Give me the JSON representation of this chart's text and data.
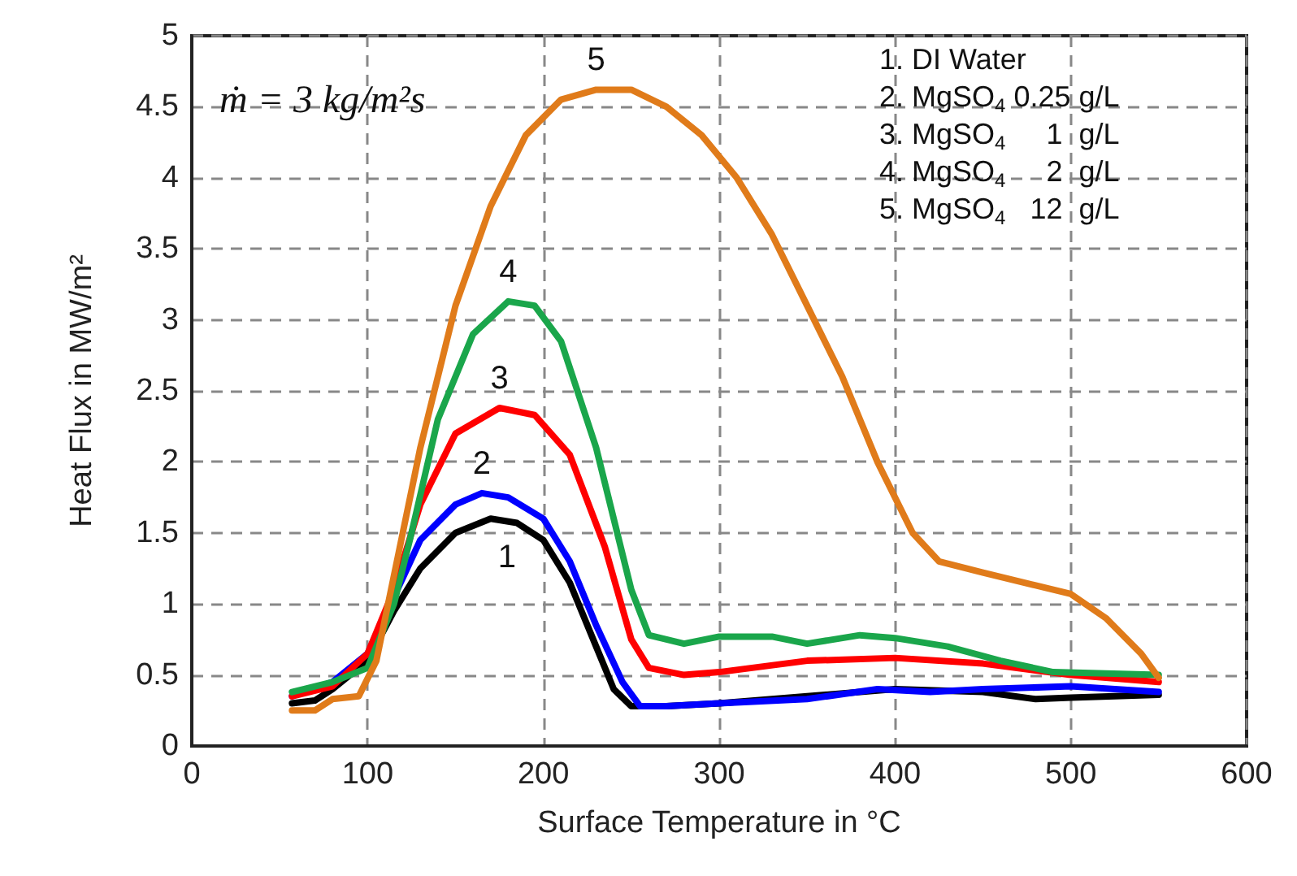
{
  "chart_data": {
    "type": "line",
    "xlabel": "Surface Temperature in °C",
    "ylabel": "Heat Flux in MW/m²",
    "xlim": [
      0,
      600
    ],
    "xticks": [
      0,
      100,
      200,
      300,
      400,
      500,
      600
    ],
    "ylim": [
      0,
      5
    ],
    "yticks": [
      0,
      0.5,
      1,
      1.5,
      2,
      2.5,
      3,
      3.5,
      4,
      4.5,
      5
    ],
    "grid": true,
    "legend": false,
    "marker": "none",
    "line_style": "solid",
    "annotations": [
      "ṁ = 3 kg/m²s",
      "1. DI Water\n2. MgSO$_{4}$ 0.25 g/L\n3. MgSO$_{4}$     1  g/L\n4. MgSO$_{4}$     2  g/L\n5. MgSO$_{4}$   12  g/L"
    ],
    "series": [
      {
        "name": "1",
        "color": "#000000",
        "x": [
          57,
          70,
          80,
          100,
          115,
          130,
          150,
          170,
          185,
          200,
          215,
          230,
          240,
          250,
          270,
          300,
          350,
          400,
          450,
          480,
          500,
          550
        ],
        "values": [
          0.3,
          0.32,
          0.4,
          0.6,
          0.95,
          1.25,
          1.5,
          1.6,
          1.57,
          1.45,
          1.15,
          0.7,
          0.4,
          0.28,
          0.28,
          0.3,
          0.35,
          0.4,
          0.38,
          0.33,
          0.34,
          0.36
        ]
      },
      {
        "name": "2",
        "color": "#0000ff",
        "x": [
          57,
          80,
          100,
          115,
          130,
          150,
          165,
          180,
          200,
          215,
          230,
          245,
          255,
          270,
          300,
          350,
          390,
          420,
          450,
          500,
          550
        ],
        "values": [
          0.35,
          0.45,
          0.65,
          1.05,
          1.45,
          1.7,
          1.78,
          1.75,
          1.6,
          1.3,
          0.85,
          0.45,
          0.28,
          0.28,
          0.3,
          0.33,
          0.4,
          0.38,
          0.4,
          0.42,
          0.38
        ]
      },
      {
        "name": "3",
        "color": "#ff0000",
        "x": [
          57,
          80,
          100,
          115,
          130,
          150,
          175,
          195,
          215,
          235,
          250,
          260,
          280,
          300,
          350,
          400,
          450,
          500,
          550
        ],
        "values": [
          0.35,
          0.42,
          0.65,
          1.1,
          1.7,
          2.2,
          2.38,
          2.33,
          2.05,
          1.4,
          0.75,
          0.55,
          0.5,
          0.52,
          0.6,
          0.62,
          0.58,
          0.5,
          0.45
        ]
      },
      {
        "name": "4",
        "color": "#1aa64b",
        "x": [
          57,
          80,
          100,
          115,
          125,
          140,
          160,
          180,
          195,
          210,
          230,
          250,
          260,
          280,
          300,
          330,
          350,
          380,
          400,
          430,
          460,
          490,
          550
        ],
        "values": [
          0.38,
          0.45,
          0.55,
          1.0,
          1.5,
          2.3,
          2.9,
          3.13,
          3.1,
          2.85,
          2.1,
          1.1,
          0.78,
          0.72,
          0.77,
          0.77,
          0.72,
          0.78,
          0.76,
          0.7,
          0.6,
          0.52,
          0.5
        ]
      },
      {
        "name": "5",
        "color": "#e07b1a",
        "x": [
          57,
          70,
          80,
          95,
          105,
          115,
          130,
          150,
          170,
          190,
          210,
          230,
          250,
          270,
          290,
          310,
          330,
          350,
          370,
          390,
          410,
          425,
          450,
          480,
          500,
          520,
          540,
          550
        ],
        "values": [
          0.25,
          0.25,
          0.33,
          0.35,
          0.6,
          1.2,
          2.1,
          3.1,
          3.8,
          4.3,
          4.55,
          4.62,
          4.62,
          4.5,
          4.3,
          4.0,
          3.6,
          3.1,
          2.6,
          2.0,
          1.5,
          1.3,
          1.22,
          1.13,
          1.07,
          0.9,
          0.65,
          0.48
        ]
      }
    ]
  }
}
